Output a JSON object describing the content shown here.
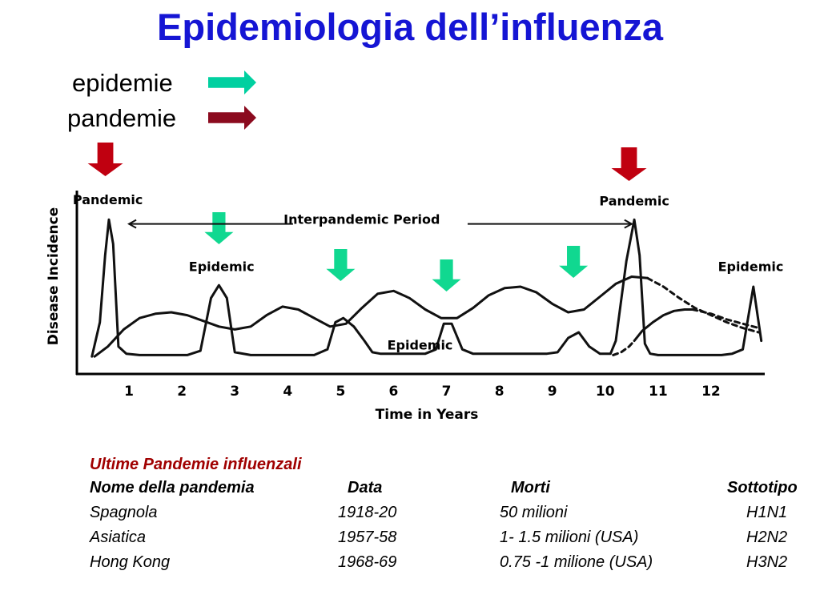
{
  "slide": {
    "title": "Epidemiologia dell’influenza",
    "legend": [
      {
        "label": "epidemie",
        "color": "#00d0a0"
      },
      {
        "label": "pandemie",
        "color": "#8b0a1e"
      }
    ],
    "marker_colors": {
      "epidemic": "#10d890",
      "pandemic": "#c00010"
    }
  },
  "chart_data": {
    "type": "line",
    "title": "",
    "xlabel": "Time in Years",
    "ylabel": "Disease Incidence",
    "xlim": [
      0,
      13
    ],
    "ylim": [
      0,
      1
    ],
    "xticks": [
      1,
      2,
      3,
      4,
      5,
      6,
      7,
      8,
      9,
      10,
      11,
      12
    ],
    "grid": false,
    "series": [
      {
        "line": "solid",
        "x": [
          0.3,
          0.45,
          0.55,
          0.62,
          0.7,
          0.8,
          0.95,
          1.2,
          1.5,
          1.8,
          2.1,
          2.35,
          2.55,
          2.7,
          2.85,
          3.0,
          3.3,
          3.6,
          3.9,
          4.2,
          4.5,
          4.75,
          4.9,
          5.05,
          5.25,
          5.45,
          5.6,
          5.75,
          5.9,
          6.0,
          6.2,
          6.4,
          6.6,
          6.8,
          6.95,
          7.1,
          7.3,
          7.5,
          7.7,
          7.9,
          8.1,
          8.3,
          8.5,
          8.7,
          8.9,
          9.1,
          9.3,
          9.5,
          9.7,
          9.9,
          10.1,
          10.2,
          10.4,
          10.55,
          10.65,
          10.75,
          10.85,
          11.0,
          11.2,
          11.4,
          11.6,
          11.8,
          12.0,
          12.2,
          12.4,
          12.6,
          12.8,
          12.95
        ],
        "y": [
          0.01,
          0.25,
          0.72,
          0.97,
          0.8,
          0.08,
          0.03,
          0.02,
          0.02,
          0.02,
          0.02,
          0.05,
          0.42,
          0.51,
          0.42,
          0.04,
          0.02,
          0.02,
          0.02,
          0.02,
          0.02,
          0.06,
          0.25,
          0.28,
          0.22,
          0.12,
          0.04,
          0.03,
          0.03,
          0.03,
          0.03,
          0.03,
          0.03,
          0.06,
          0.24,
          0.24,
          0.06,
          0.03,
          0.03,
          0.03,
          0.03,
          0.03,
          0.03,
          0.03,
          0.03,
          0.04,
          0.14,
          0.18,
          0.08,
          0.03,
          0.03,
          0.12,
          0.68,
          0.97,
          0.72,
          0.1,
          0.03,
          0.02,
          0.02,
          0.02,
          0.02,
          0.02,
          0.02,
          0.02,
          0.03,
          0.06,
          0.5,
          0.12
        ]
      },
      {
        "line": "solid",
        "x": [
          0.35,
          0.6,
          0.9,
          1.2,
          1.5,
          1.8,
          2.1,
          2.4,
          2.7,
          3.0,
          3.3,
          3.6,
          3.9,
          4.2,
          4.5,
          4.8,
          5.1,
          5.4,
          5.7,
          6.0,
          6.3,
          6.6,
          6.9,
          7.2,
          7.5,
          7.8,
          8.1,
          8.4,
          8.7,
          9.0,
          9.3,
          9.6,
          9.9,
          10.2,
          10.5,
          10.8
        ],
        "y": [
          0.01,
          0.08,
          0.2,
          0.28,
          0.31,
          0.32,
          0.3,
          0.26,
          0.22,
          0.2,
          0.22,
          0.3,
          0.36,
          0.34,
          0.28,
          0.22,
          0.24,
          0.35,
          0.45,
          0.47,
          0.42,
          0.34,
          0.28,
          0.28,
          0.35,
          0.44,
          0.49,
          0.5,
          0.46,
          0.38,
          0.32,
          0.34,
          0.43,
          0.52,
          0.57,
          0.56
        ]
      },
      {
        "line": "dashed",
        "x": [
          10.8,
          11.1,
          11.4,
          11.7,
          12.0,
          12.3,
          12.6,
          12.9
        ],
        "y": [
          0.56,
          0.5,
          0.42,
          0.35,
          0.3,
          0.25,
          0.21,
          0.18
        ]
      },
      {
        "line": "dashed",
        "x": [
          10.15,
          10.3,
          10.45,
          10.55
        ],
        "y": [
          0.02,
          0.04,
          0.08,
          0.12
        ]
      },
      {
        "line": "solid",
        "x": [
          10.55,
          10.7,
          10.9,
          11.1,
          11.3,
          11.5,
          11.65
        ],
        "y": [
          0.12,
          0.19,
          0.25,
          0.3,
          0.33,
          0.34,
          0.34
        ]
      },
      {
        "line": "dashed",
        "x": [
          11.65,
          12.0,
          12.3,
          12.6,
          12.9
        ],
        "y": [
          0.34,
          0.31,
          0.27,
          0.24,
          0.21
        ]
      }
    ],
    "annotations": [
      {
        "text": "Pandemic",
        "x": 0.6,
        "y": 1.08
      },
      {
        "text": "Epidemic",
        "x": 2.75,
        "y": 0.61
      },
      {
        "text": "Interpandemic Period",
        "x": 5.4,
        "y": 0.94
      },
      {
        "text": "Epidemic",
        "x": 6.5,
        "y": 0.06
      },
      {
        "text": "Pandemic",
        "x": 10.55,
        "y": 1.07
      },
      {
        "text": "Epidemic",
        "x": 12.75,
        "y": 0.61
      }
    ],
    "period_span": [
      1.0,
      10.5
    ],
    "epidemic_markers_x": [
      2.7,
      5.0,
      7.0,
      9.4
    ],
    "pandemic_markers_x": [
      0.75,
      10.45
    ]
  },
  "table": {
    "caption": "Ultime Pandemie influenzali",
    "headers": [
      "Nome della pandemia",
      "Data",
      "Morti",
      "Sottotipo"
    ],
    "rows": [
      [
        "Spagnola",
        "1918-20",
        "50 milioni",
        "H1N1"
      ],
      [
        "Asiatica",
        "1957-58",
        "1- 1.5 milioni (USA)",
        "H2N2"
      ],
      [
        "Hong Kong",
        "1968-69",
        "0.75 -1 milione (USA)",
        "H3N2"
      ]
    ]
  }
}
